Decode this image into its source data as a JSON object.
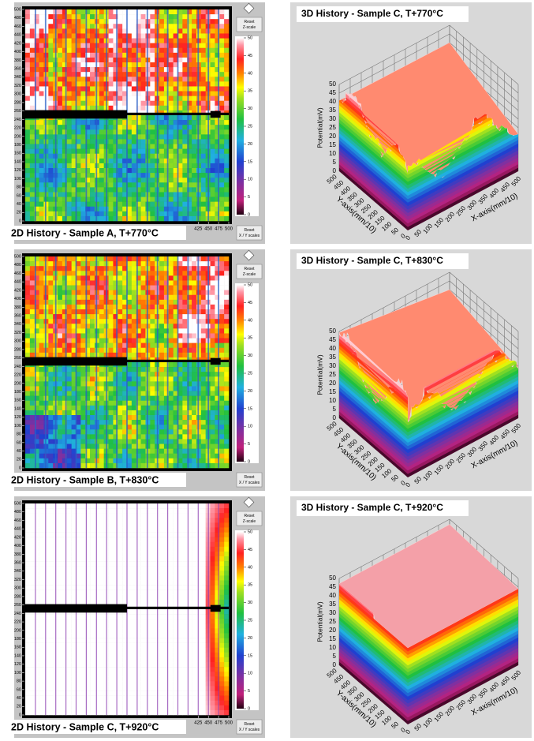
{
  "chart_data": [
    {
      "type": "heatmap",
      "title": "2D History - Sample A, T+770°C",
      "ylim": [
        0,
        500
      ],
      "yticks": [
        0,
        20,
        40,
        60,
        80,
        100,
        120,
        140,
        160,
        180,
        200,
        220,
        240,
        260,
        280,
        300,
        320,
        340,
        360,
        380,
        400,
        420,
        440,
        460,
        480,
        500
      ],
      "xlim": [
        0,
        500
      ],
      "xticks": [
        425,
        450,
        475,
        500
      ],
      "colorbar": {
        "lim": [
          0,
          50
        ],
        "ticks": [
          0,
          5,
          10,
          15,
          20,
          25,
          30,
          35,
          40,
          45,
          50
        ]
      },
      "buttons": [
        [
          "Reset",
          "Z-scale"
        ],
        [
          "Reset",
          "X / Y scales"
        ]
      ]
    },
    {
      "type": "surface3d",
      "title": "3D History - Sample C, T+770°C",
      "zlabel": "Potential(mV)",
      "ylabel": "Y-axis(mm/10)",
      "xlabel": "X-axis(mm/10)",
      "zlim": [
        0,
        50
      ],
      "zticks": [
        0,
        5,
        10,
        15,
        20,
        25,
        30,
        35,
        40,
        45,
        50
      ],
      "ylim": [
        0,
        500
      ],
      "yticks": [
        0,
        50,
        100,
        150,
        200,
        250,
        300,
        350,
        400,
        450,
        500
      ],
      "xlim": [
        0,
        500
      ],
      "xticks": [
        0,
        50,
        100,
        150,
        200,
        250,
        300,
        350,
        400,
        450,
        500
      ]
    },
    {
      "type": "heatmap",
      "title": "2D History - Sample B,  T+830°C",
      "ylim": [
        0,
        500
      ],
      "yticks": [
        0,
        20,
        40,
        60,
        80,
        100,
        120,
        140,
        160,
        180,
        200,
        220,
        240,
        260,
        280,
        300,
        320,
        340,
        360,
        380,
        400,
        420,
        440,
        460,
        480,
        500
      ],
      "xlim": [
        0,
        500
      ],
      "xticks": [],
      "colorbar": {
        "lim": [
          0,
          50
        ],
        "ticks": [
          0,
          5,
          10,
          15,
          20,
          25,
          30,
          35,
          40,
          45,
          50
        ]
      },
      "buttons": [
        [
          "Reset",
          "Z-scale"
        ],
        [
          "Reset",
          "X / Y scales"
        ]
      ]
    },
    {
      "type": "surface3d",
      "title": "3D History - Sample C, T+830°C",
      "zlabel": "Potential(mV)",
      "ylabel": "Y-axis(mm/10)",
      "xlabel": "X-axis(mm/10)",
      "zlim": [
        0,
        50
      ],
      "zticks": [
        0,
        5,
        10,
        15,
        20,
        25,
        30,
        35,
        40,
        45,
        50
      ],
      "ylim": [
        0,
        500
      ],
      "yticks": [
        0,
        50,
        100,
        150,
        200,
        250,
        300,
        350,
        400,
        450,
        500
      ],
      "xlim": [
        0,
        500
      ],
      "xticks": [
        0,
        50,
        100,
        150,
        200,
        250,
        300,
        350,
        400,
        450,
        500
      ]
    },
    {
      "type": "heatmap",
      "title": "2D History - Sample C, T+920°C",
      "ylim": [
        0,
        500
      ],
      "yticks": [
        0,
        20,
        40,
        60,
        80,
        100,
        120,
        140,
        160,
        180,
        200,
        220,
        240,
        260,
        280,
        300,
        320,
        340,
        360,
        380,
        400,
        420,
        440,
        460,
        480,
        500
      ],
      "xlim": [
        0,
        500
      ],
      "xticks": [
        425,
        450,
        475,
        500
      ],
      "colorbar": {
        "lim": [
          0,
          50
        ],
        "ticks": [
          0,
          5,
          10,
          15,
          20,
          25,
          30,
          35,
          40,
          45,
          50
        ]
      },
      "buttons": [
        [
          "Reset",
          "Z-scale"
        ],
        [
          "Reset",
          "X / Y scales"
        ]
      ]
    },
    {
      "type": "surface3d",
      "title": "3D History - Sample C, T+920°C",
      "zlabel": "Potential(mV)",
      "ylabel": "Y-axis(mm/10)",
      "xlabel": "X-axis(mm/10)",
      "zlim": [
        0,
        50
      ],
      "zticks": [
        0,
        5,
        10,
        15,
        20,
        25,
        30,
        35,
        40,
        45,
        50
      ],
      "ylim": [
        0,
        500
      ],
      "yticks": [
        0,
        50,
        100,
        150,
        200,
        250,
        300,
        350,
        400,
        450,
        500
      ],
      "xlim": [
        0,
        500
      ],
      "xticks": [
        0,
        50,
        100,
        150,
        200,
        250,
        300,
        350,
        400,
        450,
        500
      ]
    }
  ]
}
